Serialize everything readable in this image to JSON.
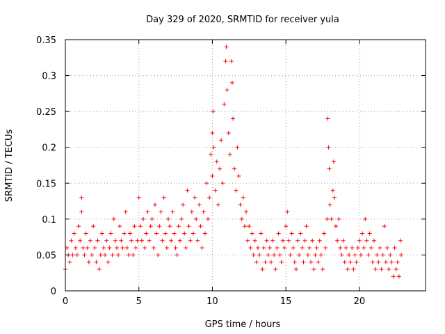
{
  "chart_data": {
    "type": "scatter",
    "title": "Day 329 of 2020, SRMTID for receiver yula",
    "xlabel": "GPS time / hours",
    "ylabel": "SRMTID / TECUs",
    "xlim": [
      0,
      24.5
    ],
    "ylim": [
      0,
      0.35
    ],
    "xticks": [
      0,
      5,
      10,
      15,
      20
    ],
    "xtick_labels": [
      "0",
      "5",
      "10",
      "15",
      "20"
    ],
    "yticks": [
      0,
      0.05,
      0.1,
      0.15,
      0.2,
      0.25,
      0.3,
      0.35
    ],
    "ytick_labels": [
      "0",
      "0.05",
      "0.1",
      "0.15",
      "0.2",
      "0.25",
      "0.3",
      "0.35"
    ],
    "grid": true,
    "marker": "+",
    "color": "#ff0000",
    "series": [
      {
        "name": "SRMTID",
        "points": [
          [
            0.0,
            0.03
          ],
          [
            0.1,
            0.06
          ],
          [
            0.2,
            0.05
          ],
          [
            0.3,
            0.04
          ],
          [
            0.4,
            0.07
          ],
          [
            0.5,
            0.05
          ],
          [
            0.6,
            0.08
          ],
          [
            0.7,
            0.06
          ],
          [
            0.8,
            0.05
          ],
          [
            0.9,
            0.09
          ],
          [
            1.0,
            0.07
          ],
          [
            1.1,
            0.13
          ],
          [
            1.1,
            0.11
          ],
          [
            1.2,
            0.06
          ],
          [
            1.3,
            0.05
          ],
          [
            1.4,
            0.08
          ],
          [
            1.5,
            0.06
          ],
          [
            1.6,
            0.04
          ],
          [
            1.7,
            0.07
          ],
          [
            1.8,
            0.05
          ],
          [
            1.9,
            0.09
          ],
          [
            2.0,
            0.06
          ],
          [
            2.1,
            0.04
          ],
          [
            2.2,
            0.07
          ],
          [
            2.3,
            0.03
          ],
          [
            2.4,
            0.05
          ],
          [
            2.5,
            0.08
          ],
          [
            2.6,
            0.06
          ],
          [
            2.7,
            0.05
          ],
          [
            2.8,
            0.07
          ],
          [
            2.9,
            0.04
          ],
          [
            3.0,
            0.06
          ],
          [
            3.1,
            0.08
          ],
          [
            3.2,
            0.05
          ],
          [
            3.3,
            0.1
          ],
          [
            3.4,
            0.07
          ],
          [
            3.5,
            0.06
          ],
          [
            3.6,
            0.05
          ],
          [
            3.7,
            0.09
          ],
          [
            3.8,
            0.07
          ],
          [
            3.9,
            0.06
          ],
          [
            4.0,
            0.08
          ],
          [
            4.1,
            0.11
          ],
          [
            4.2,
            0.06
          ],
          [
            4.3,
            0.05
          ],
          [
            4.4,
            0.08
          ],
          [
            4.5,
            0.07
          ],
          [
            4.6,
            0.05
          ],
          [
            4.7,
            0.09
          ],
          [
            4.8,
            0.06
          ],
          [
            4.9,
            0.07
          ],
          [
            5.0,
            0.13
          ],
          [
            5.1,
            0.09
          ],
          [
            5.2,
            0.07
          ],
          [
            5.3,
            0.1
          ],
          [
            5.4,
            0.06
          ],
          [
            5.5,
            0.08
          ],
          [
            5.6,
            0.11
          ],
          [
            5.7,
            0.07
          ],
          [
            5.8,
            0.09
          ],
          [
            5.9,
            0.1
          ],
          [
            6.0,
            0.06
          ],
          [
            6.1,
            0.12
          ],
          [
            6.2,
            0.08
          ],
          [
            6.3,
            0.05
          ],
          [
            6.4,
            0.09
          ],
          [
            6.5,
            0.11
          ],
          [
            6.6,
            0.07
          ],
          [
            6.7,
            0.13
          ],
          [
            6.8,
            0.08
          ],
          [
            6.9,
            0.06
          ],
          [
            7.0,
            0.1
          ],
          [
            7.1,
            0.09
          ],
          [
            7.2,
            0.07
          ],
          [
            7.3,
            0.11
          ],
          [
            7.4,
            0.08
          ],
          [
            7.5,
            0.06
          ],
          [
            7.6,
            0.05
          ],
          [
            7.7,
            0.09
          ],
          [
            7.8,
            0.07
          ],
          [
            7.9,
            0.1
          ],
          [
            8.0,
            0.12
          ],
          [
            8.1,
            0.08
          ],
          [
            8.2,
            0.06
          ],
          [
            8.3,
            0.14
          ],
          [
            8.4,
            0.09
          ],
          [
            8.5,
            0.07
          ],
          [
            8.6,
            0.11
          ],
          [
            8.7,
            0.08
          ],
          [
            8.8,
            0.13
          ],
          [
            8.9,
            0.1
          ],
          [
            9.0,
            0.07
          ],
          [
            9.1,
            0.12
          ],
          [
            9.2,
            0.09
          ],
          [
            9.3,
            0.06
          ],
          [
            9.4,
            0.11
          ],
          [
            9.5,
            0.08
          ],
          [
            9.6,
            0.15
          ],
          [
            9.7,
            0.1
          ],
          [
            9.8,
            0.13
          ],
          [
            9.9,
            0.19
          ],
          [
            10.0,
            0.16
          ],
          [
            10.0,
            0.22
          ],
          [
            10.05,
            0.25
          ],
          [
            10.1,
            0.2
          ],
          [
            10.2,
            0.14
          ],
          [
            10.3,
            0.18
          ],
          [
            10.4,
            0.12
          ],
          [
            10.5,
            0.17
          ],
          [
            10.6,
            0.21
          ],
          [
            10.7,
            0.15
          ],
          [
            10.8,
            0.26
          ],
          [
            10.9,
            0.32
          ],
          [
            10.95,
            0.34
          ],
          [
            11.0,
            0.28
          ],
          [
            11.1,
            0.22
          ],
          [
            11.2,
            0.19
          ],
          [
            11.3,
            0.32
          ],
          [
            11.35,
            0.29
          ],
          [
            11.4,
            0.24
          ],
          [
            11.5,
            0.17
          ],
          [
            11.6,
            0.14
          ],
          [
            11.7,
            0.2
          ],
          [
            11.8,
            0.16
          ],
          [
            11.9,
            0.12
          ],
          [
            12.0,
            0.1
          ],
          [
            12.1,
            0.13
          ],
          [
            12.2,
            0.09
          ],
          [
            12.3,
            0.11
          ],
          [
            12.4,
            0.07
          ],
          [
            12.5,
            0.09
          ],
          [
            12.6,
            0.06
          ],
          [
            12.7,
            0.08
          ],
          [
            12.8,
            0.05
          ],
          [
            12.9,
            0.07
          ],
          [
            13.0,
            0.04
          ],
          [
            13.1,
            0.06
          ],
          [
            13.2,
            0.05
          ],
          [
            13.3,
            0.08
          ],
          [
            13.4,
            0.03
          ],
          [
            13.5,
            0.06
          ],
          [
            13.6,
            0.04
          ],
          [
            13.7,
            0.07
          ],
          [
            13.8,
            0.05
          ],
          [
            13.9,
            0.06
          ],
          [
            14.0,
            0.04
          ],
          [
            14.1,
            0.07
          ],
          [
            14.2,
            0.05
          ],
          [
            14.3,
            0.03
          ],
          [
            14.4,
            0.06
          ],
          [
            14.5,
            0.08
          ],
          [
            14.6,
            0.05
          ],
          [
            14.7,
            0.04
          ],
          [
            14.8,
            0.07
          ],
          [
            14.9,
            0.06
          ],
          [
            15.0,
            0.09
          ],
          [
            15.1,
            0.11
          ],
          [
            15.2,
            0.07
          ],
          [
            15.3,
            0.05
          ],
          [
            15.4,
            0.08
          ],
          [
            15.5,
            0.06
          ],
          [
            15.6,
            0.04
          ],
          [
            15.7,
            0.03
          ],
          [
            15.8,
            0.07
          ],
          [
            15.9,
            0.05
          ],
          [
            16.0,
            0.08
          ],
          [
            16.1,
            0.06
          ],
          [
            16.2,
            0.04
          ],
          [
            16.3,
            0.07
          ],
          [
            16.4,
            0.09
          ],
          [
            16.5,
            0.05
          ],
          [
            16.6,
            0.06
          ],
          [
            16.7,
            0.04
          ],
          [
            16.8,
            0.07
          ],
          [
            16.9,
            0.03
          ],
          [
            17.0,
            0.05
          ],
          [
            17.1,
            0.06
          ],
          [
            17.2,
            0.04
          ],
          [
            17.3,
            0.07
          ],
          [
            17.4,
            0.05
          ],
          [
            17.5,
            0.03
          ],
          [
            17.6,
            0.08
          ],
          [
            17.7,
            0.06
          ],
          [
            17.8,
            0.1
          ],
          [
            17.85,
            0.24
          ],
          [
            17.9,
            0.2
          ],
          [
            17.95,
            0.17
          ],
          [
            18.0,
            0.12
          ],
          [
            18.1,
            0.1
          ],
          [
            18.2,
            0.14
          ],
          [
            18.25,
            0.18
          ],
          [
            18.3,
            0.13
          ],
          [
            18.4,
            0.09
          ],
          [
            18.5,
            0.07
          ],
          [
            18.6,
            0.1
          ],
          [
            18.7,
            0.06
          ],
          [
            18.8,
            0.05
          ],
          [
            18.9,
            0.07
          ],
          [
            19.0,
            0.04
          ],
          [
            19.1,
            0.06
          ],
          [
            19.2,
            0.03
          ],
          [
            19.3,
            0.05
          ],
          [
            19.4,
            0.04
          ],
          [
            19.5,
            0.06
          ],
          [
            19.6,
            0.03
          ],
          [
            19.7,
            0.05
          ],
          [
            19.8,
            0.04
          ],
          [
            19.9,
            0.06
          ],
          [
            20.0,
            0.07
          ],
          [
            20.1,
            0.05
          ],
          [
            20.2,
            0.08
          ],
          [
            20.3,
            0.06
          ],
          [
            20.4,
            0.1
          ],
          [
            20.5,
            0.07
          ],
          [
            20.6,
            0.05
          ],
          [
            20.7,
            0.08
          ],
          [
            20.8,
            0.06
          ],
          [
            20.9,
            0.04
          ],
          [
            21.0,
            0.07
          ],
          [
            21.1,
            0.03
          ],
          [
            21.2,
            0.05
          ],
          [
            21.3,
            0.04
          ],
          [
            21.4,
            0.06
          ],
          [
            21.5,
            0.03
          ],
          [
            21.6,
            0.05
          ],
          [
            21.7,
            0.09
          ],
          [
            21.8,
            0.04
          ],
          [
            21.9,
            0.06
          ],
          [
            22.0,
            0.03
          ],
          [
            22.1,
            0.05
          ],
          [
            22.2,
            0.04
          ],
          [
            22.3,
            0.02
          ],
          [
            22.4,
            0.06
          ],
          [
            22.5,
            0.03
          ],
          [
            22.6,
            0.04
          ],
          [
            22.7,
            0.02
          ],
          [
            22.8,
            0.07
          ],
          [
            22.85,
            0.05
          ]
        ]
      }
    ]
  }
}
